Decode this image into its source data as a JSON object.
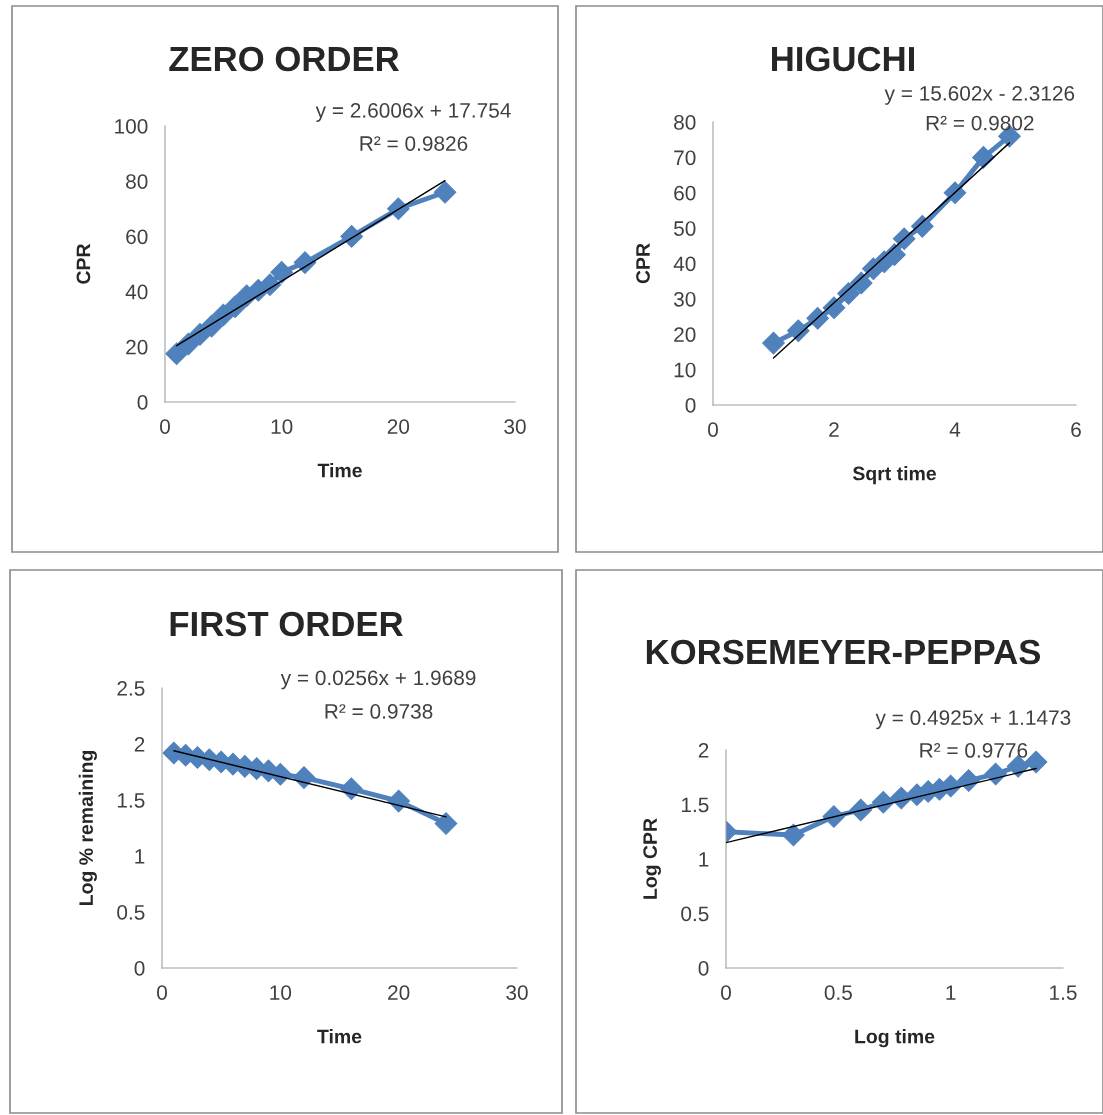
{
  "chart_data": [
    {
      "type": "line",
      "title": "ZERO ORDER",
      "xlabel": "Time",
      "ylabel": "CPR",
      "xlim": [
        0,
        30
      ],
      "xticks": [
        0,
        10,
        20,
        30
      ],
      "ylim": [
        0,
        100
      ],
      "yticks": [
        0,
        20,
        40,
        60,
        80,
        100
      ],
      "grid": false,
      "legend": false,
      "marker": "diamond",
      "line_style": "solid",
      "annotations": [
        "y = 2.6006x + 17.754",
        "R² = 0.9826"
      ],
      "series": [
        {
          "color": "#4f81bd",
          "x": [
            1,
            2,
            3,
            4,
            5,
            6,
            7,
            8,
            9,
            10,
            12,
            16,
            20,
            24
          ],
          "values": [
            17.5,
            21,
            24.5,
            27.5,
            31.5,
            34.5,
            38.5,
            40.5,
            42.5,
            47,
            50.5,
            60,
            70,
            76
          ]
        },
        {
          "type": "line",
          "color": "#000000",
          "marker": "none",
          "x": [
            1,
            24
          ],
          "values": [
            20.4,
            80.2
          ]
        }
      ]
    },
    {
      "type": "line",
      "title": "HIGUCHI",
      "xlabel": "Sqrt time",
      "ylabel": "CPR",
      "xlim": [
        0,
        6
      ],
      "xticks": [
        0,
        2,
        4,
        6
      ],
      "ylim": [
        0,
        80
      ],
      "yticks": [
        0,
        10,
        20,
        30,
        40,
        50,
        60,
        70,
        80
      ],
      "grid": false,
      "legend": false,
      "marker": "diamond",
      "line_style": "solid",
      "annotations": [
        "y = 15.602x - 2.3126",
        "R² = 0.9802"
      ],
      "series": [
        {
          "color": "#4f81bd",
          "x": [
            1,
            1.41,
            1.73,
            2,
            2.24,
            2.45,
            2.65,
            2.83,
            3,
            3.16,
            3.46,
            4,
            4.47,
            4.9
          ],
          "values": [
            17.5,
            21,
            24.5,
            27.5,
            31.5,
            34.5,
            38.5,
            40.5,
            42.5,
            47,
            50.5,
            60,
            70,
            76
          ]
        },
        {
          "type": "line",
          "color": "#000000",
          "marker": "none",
          "x": [
            1,
            4.9
          ],
          "values": [
            13.3,
            74.1
          ]
        }
      ]
    },
    {
      "type": "line",
      "title": "FIRST ORDER",
      "xlabel": "Time",
      "ylabel": "Log % remaining",
      "xlim": [
        0,
        30
      ],
      "xticks": [
        0,
        10,
        20,
        30
      ],
      "ylim": [
        0,
        2.5
      ],
      "yticks": [
        0,
        0.5,
        1,
        1.5,
        2,
        2.5
      ],
      "grid": false,
      "legend": false,
      "marker": "diamond",
      "line_style": "solid",
      "annotations": [
        "y = 0.0256x + 1.9689",
        "R² = 0.9738"
      ],
      "series": [
        {
          "color": "#4f81bd",
          "x": [
            1,
            2,
            3,
            4,
            5,
            6,
            7,
            8,
            9,
            10,
            12,
            16,
            20,
            24
          ],
          "values": [
            1.92,
            1.9,
            1.88,
            1.86,
            1.84,
            1.82,
            1.8,
            1.78,
            1.76,
            1.73,
            1.7,
            1.6,
            1.49,
            1.29
          ]
        },
        {
          "type": "line",
          "color": "#000000",
          "marker": "none",
          "x": [
            1,
            24
          ],
          "values": [
            1.94,
            1.35
          ]
        }
      ]
    },
    {
      "type": "line",
      "title": "KORSEMEYER-PEPPAS",
      "xlabel": "Log time",
      "ylabel": "Log CPR",
      "xlim": [
        0,
        1.5
      ],
      "xticks": [
        0,
        0.5,
        1,
        1.5
      ],
      "ylim": [
        0,
        2
      ],
      "yticks": [
        0,
        0.5,
        1,
        1.5,
        2
      ],
      "grid": false,
      "legend": false,
      "marker": "diamond",
      "line_style": "solid",
      "annotations": [
        "y = 0.4925x + 1.1473",
        "R² = 0.9776"
      ],
      "series": [
        {
          "color": "#4f81bd",
          "x": [
            0,
            0.3,
            0.48,
            0.6,
            0.7,
            0.78,
            0.85,
            0.9,
            0.95,
            1,
            1.08,
            1.2,
            1.3,
            1.38
          ],
          "values": [
            1.25,
            1.22,
            1.39,
            1.45,
            1.52,
            1.56,
            1.59,
            1.62,
            1.64,
            1.67,
            1.72,
            1.78,
            1.85,
            1.89
          ]
        },
        {
          "type": "line",
          "color": "#000000",
          "marker": "none",
          "x": [
            0,
            1.38
          ],
          "values": [
            1.15,
            1.83
          ]
        }
      ]
    }
  ]
}
